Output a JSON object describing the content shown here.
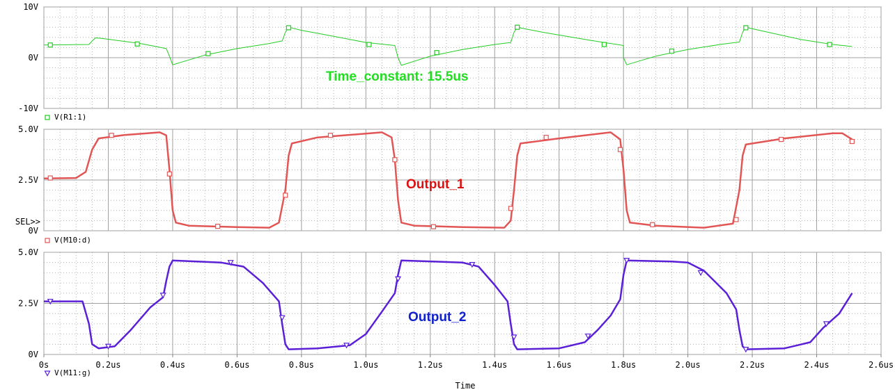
{
  "colors": {
    "green": "#22cc22",
    "red": "#e25555",
    "blue": "#5a1fd6",
    "annotation_red": "#dd1111",
    "annotation_blue": "#1122cc",
    "annotation_green": "#22dd22",
    "grid_major": "#a0a0a0",
    "grid_minor": "#a0a0a0"
  },
  "chart_data": {
    "type": "line",
    "x_axis": {
      "label": "Time",
      "range": [
        0,
        2.6
      ],
      "tick_values": [
        0,
        0.2,
        0.4,
        0.6,
        0.8,
        1.0,
        1.2,
        1.4,
        1.6,
        1.8,
        2.0,
        2.2,
        2.4,
        2.6
      ],
      "tick_labels": [
        "0s",
        "0.2us",
        "0.4us",
        "0.6us",
        "0.8us",
        "1.0us",
        "1.2us",
        "1.4us",
        "1.6us",
        "1.8us",
        "2.0us",
        "2.2us",
        "2.4us",
        "2.6us"
      ]
    },
    "panels": [
      {
        "series_name": "V(R1:1)",
        "marker": "square",
        "color": "green",
        "ylim": [
          -10,
          10
        ],
        "ytick_values": [
          10,
          0,
          -10
        ],
        "ytick_labels": [
          "10V",
          "0V",
          "-10V"
        ],
        "annotation": "Time_constant: 15.5us",
        "annotation_color": "annotation_green",
        "points": [
          [
            0,
            2.5
          ],
          [
            0.14,
            2.6
          ],
          [
            0.15,
            3.3
          ],
          [
            0.16,
            3.9
          ],
          [
            0.18,
            3.8
          ],
          [
            0.3,
            2.8
          ],
          [
            0.38,
            1.8
          ],
          [
            0.39,
            0.3
          ],
          [
            0.4,
            -1.4
          ],
          [
            0.5,
            0.5
          ],
          [
            0.6,
            1.8
          ],
          [
            0.7,
            2.8
          ],
          [
            0.74,
            3.3
          ],
          [
            0.75,
            5.0
          ],
          [
            0.76,
            6.0
          ],
          [
            0.8,
            5.4
          ],
          [
            0.9,
            4.2
          ],
          [
            1.0,
            3.0
          ],
          [
            1.09,
            2.4
          ],
          [
            1.1,
            0
          ],
          [
            1.11,
            -1.5
          ],
          [
            1.2,
            0.3
          ],
          [
            1.3,
            1.6
          ],
          [
            1.4,
            2.6
          ],
          [
            1.45,
            3.0
          ],
          [
            1.46,
            5.0
          ],
          [
            1.47,
            6.0
          ],
          [
            1.55,
            5.0
          ],
          [
            1.7,
            3.4
          ],
          [
            1.8,
            2.4
          ],
          [
            1.8,
            0
          ],
          [
            1.81,
            -1.4
          ],
          [
            1.9,
            0.3
          ],
          [
            2.0,
            1.6
          ],
          [
            2.1,
            2.6
          ],
          [
            2.16,
            3.1
          ],
          [
            2.17,
            5.0
          ],
          [
            2.18,
            6.0
          ],
          [
            2.25,
            5.0
          ],
          [
            2.35,
            3.6
          ],
          [
            2.45,
            2.6
          ],
          [
            2.51,
            2.2
          ]
        ],
        "markers": [
          [
            0.02,
            2.5
          ],
          [
            0.29,
            2.7
          ],
          [
            0.51,
            0.8
          ],
          [
            0.76,
            5.9
          ],
          [
            1.01,
            2.6
          ],
          [
            1.22,
            1.0
          ],
          [
            1.47,
            6.0
          ],
          [
            1.74,
            2.6
          ],
          [
            1.95,
            1.3
          ],
          [
            2.18,
            5.9
          ],
          [
            2.44,
            2.6
          ]
        ]
      },
      {
        "series_name": "V(M10:d)",
        "marker": "square",
        "color": "red",
        "ylim": [
          0,
          5.0
        ],
        "ytick_values": [
          5.0,
          2.5,
          0
        ],
        "ytick_labels": [
          "5.0V",
          "2.5V",
          "0V"
        ],
        "extra_label": "SEL>>",
        "annotation": "Output_1",
        "annotation_color": "annotation_red",
        "points": [
          [
            0,
            2.58
          ],
          [
            0.1,
            2.6
          ],
          [
            0.13,
            2.9
          ],
          [
            0.15,
            4.0
          ],
          [
            0.17,
            4.55
          ],
          [
            0.25,
            4.72
          ],
          [
            0.36,
            4.85
          ],
          [
            0.38,
            4.7
          ],
          [
            0.39,
            3.0
          ],
          [
            0.4,
            1.0
          ],
          [
            0.41,
            0.4
          ],
          [
            0.45,
            0.25
          ],
          [
            0.6,
            0.18
          ],
          [
            0.7,
            0.15
          ],
          [
            0.73,
            0.4
          ],
          [
            0.75,
            2.0
          ],
          [
            0.76,
            3.7
          ],
          [
            0.77,
            4.3
          ],
          [
            0.85,
            4.6
          ],
          [
            1.05,
            4.85
          ],
          [
            1.08,
            4.6
          ],
          [
            1.09,
            3.5
          ],
          [
            1.1,
            1.5
          ],
          [
            1.11,
            0.4
          ],
          [
            1.15,
            0.25
          ],
          [
            1.3,
            0.18
          ],
          [
            1.43,
            0.15
          ],
          [
            1.45,
            0.5
          ],
          [
            1.46,
            2.0
          ],
          [
            1.47,
            3.7
          ],
          [
            1.48,
            4.3
          ],
          [
            1.6,
            4.55
          ],
          [
            1.76,
            4.85
          ],
          [
            1.79,
            4.5
          ],
          [
            1.8,
            3.0
          ],
          [
            1.81,
            1.0
          ],
          [
            1.82,
            0.4
          ],
          [
            1.9,
            0.25
          ],
          [
            2.05,
            0.15
          ],
          [
            2.14,
            0.35
          ],
          [
            2.16,
            2.0
          ],
          [
            2.17,
            3.7
          ],
          [
            2.18,
            4.25
          ],
          [
            2.3,
            4.55
          ],
          [
            2.45,
            4.8
          ],
          [
            2.48,
            4.8
          ],
          [
            2.51,
            4.5
          ]
        ],
        "markers": [
          [
            0.02,
            2.6
          ],
          [
            0.21,
            4.7
          ],
          [
            0.39,
            2.8
          ],
          [
            0.54,
            0.22
          ],
          [
            0.75,
            1.75
          ],
          [
            0.89,
            4.7
          ],
          [
            1.09,
            3.5
          ],
          [
            1.21,
            0.2
          ],
          [
            1.45,
            1.1
          ],
          [
            1.56,
            4.6
          ],
          [
            1.79,
            4.0
          ],
          [
            1.89,
            0.3
          ],
          [
            2.15,
            0.55
          ],
          [
            2.29,
            4.5
          ],
          [
            2.51,
            4.4
          ]
        ]
      },
      {
        "series_name": "V(M11:g)",
        "marker": "triangle",
        "color": "blue",
        "ylim": [
          0,
          5.0
        ],
        "ytick_values": [
          5.0,
          2.5,
          0
        ],
        "ytick_labels": [
          "5.0V",
          "2.5V",
          "0V"
        ],
        "annotation": "Output_2",
        "annotation_color": "annotation_blue",
        "points": [
          [
            0,
            2.6
          ],
          [
            0.12,
            2.6
          ],
          [
            0.14,
            1.5
          ],
          [
            0.15,
            0.5
          ],
          [
            0.17,
            0.3
          ],
          [
            0.22,
            0.4
          ],
          [
            0.27,
            1.2
          ],
          [
            0.33,
            2.3
          ],
          [
            0.37,
            2.8
          ],
          [
            0.38,
            3.6
          ],
          [
            0.39,
            4.3
          ],
          [
            0.4,
            4.6
          ],
          [
            0.55,
            4.5
          ],
          [
            0.62,
            4.3
          ],
          [
            0.68,
            3.5
          ],
          [
            0.73,
            2.6
          ],
          [
            0.74,
            1.5
          ],
          [
            0.75,
            0.5
          ],
          [
            0.76,
            0.25
          ],
          [
            0.85,
            0.3
          ],
          [
            0.95,
            0.45
          ],
          [
            1.0,
            1.0
          ],
          [
            1.05,
            2.1
          ],
          [
            1.09,
            3.0
          ],
          [
            1.1,
            3.9
          ],
          [
            1.11,
            4.6
          ],
          [
            1.3,
            4.5
          ],
          [
            1.35,
            4.3
          ],
          [
            1.4,
            3.4
          ],
          [
            1.44,
            2.6
          ],
          [
            1.45,
            1.5
          ],
          [
            1.46,
            0.5
          ],
          [
            1.47,
            0.25
          ],
          [
            1.6,
            0.3
          ],
          [
            1.68,
            0.6
          ],
          [
            1.72,
            1.2
          ],
          [
            1.76,
            1.9
          ],
          [
            1.79,
            2.7
          ],
          [
            1.8,
            3.9
          ],
          [
            1.81,
            4.6
          ],
          [
            1.95,
            4.55
          ],
          [
            2.0,
            4.5
          ],
          [
            2.05,
            4.1
          ],
          [
            2.12,
            3.0
          ],
          [
            2.15,
            2.2
          ],
          [
            2.16,
            1.2
          ],
          [
            2.17,
            0.4
          ],
          [
            2.18,
            0.25
          ],
          [
            2.3,
            0.3
          ],
          [
            2.38,
            0.6
          ],
          [
            2.42,
            1.3
          ],
          [
            2.47,
            2.0
          ],
          [
            2.51,
            3.0
          ]
        ],
        "markers": [
          [
            0.02,
            2.6
          ],
          [
            0.2,
            0.4
          ],
          [
            0.37,
            2.9
          ],
          [
            0.58,
            4.5
          ],
          [
            0.74,
            1.8
          ],
          [
            0.94,
            0.45
          ],
          [
            1.1,
            3.7
          ],
          [
            1.33,
            4.4
          ],
          [
            1.46,
            0.85
          ],
          [
            1.69,
            0.9
          ],
          [
            1.81,
            4.6
          ],
          [
            2.04,
            4.0
          ],
          [
            2.18,
            0.25
          ],
          [
            2.43,
            1.5
          ]
        ]
      }
    ]
  }
}
